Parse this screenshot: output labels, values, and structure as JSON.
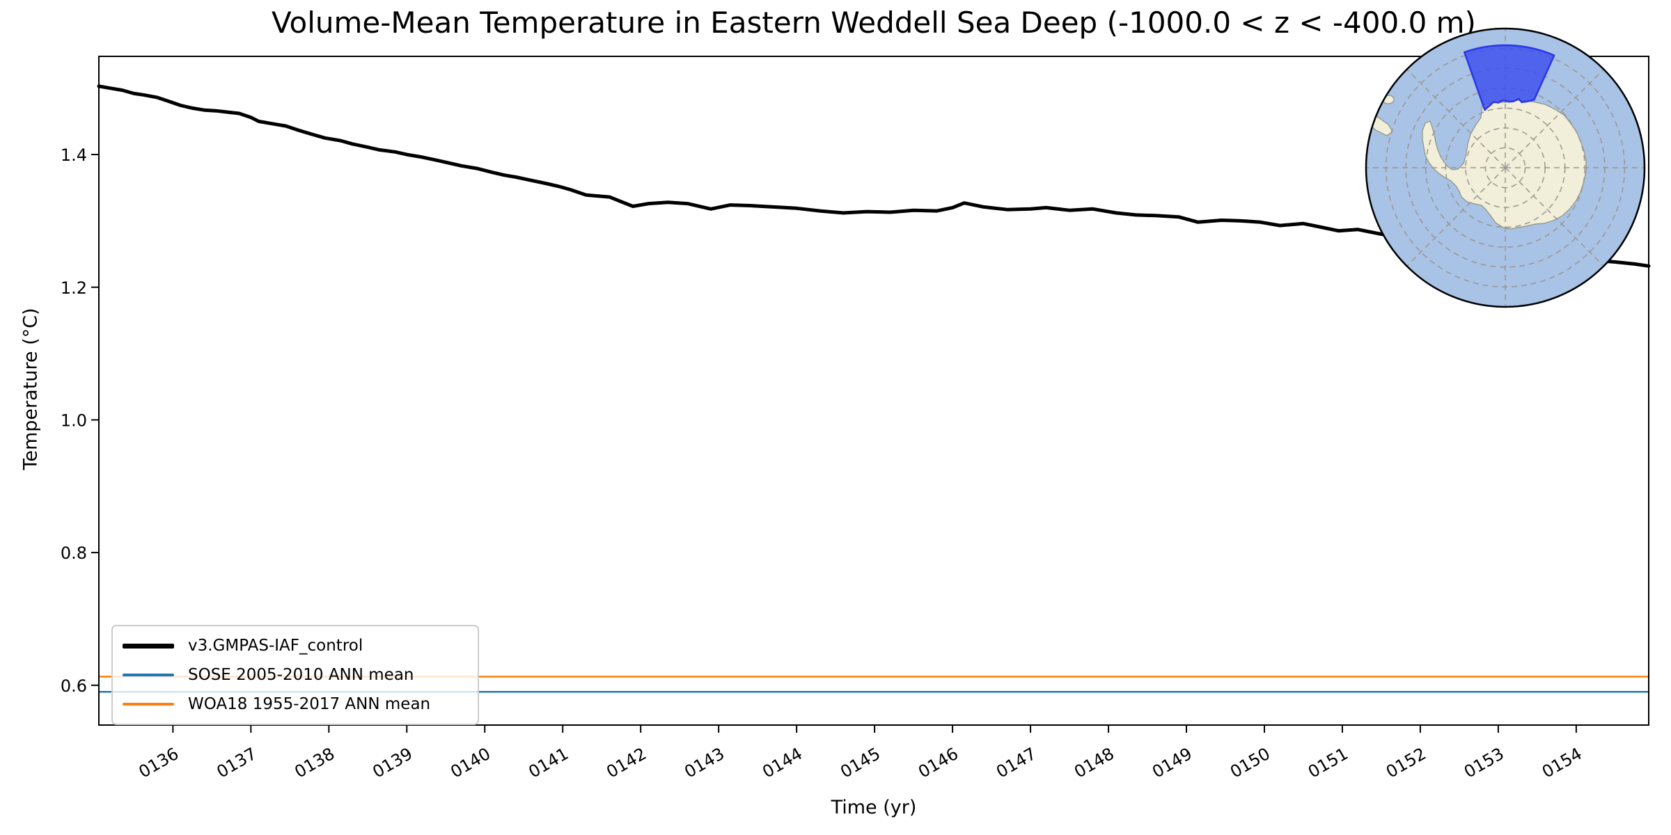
{
  "chart_data": {
    "type": "line",
    "title": "Volume-Mean Temperature in Eastern Weddell Sea Deep (-1000.0 < z < -400.0 m)",
    "xlabel": "Time (yr)",
    "ylabel": "Temperature (°C)",
    "xlim": [
      135.05,
      154.93
    ],
    "ylim": [
      0.54,
      1.548
    ],
    "grid": false,
    "legend_position": "lower left",
    "xticks": {
      "values": [
        136,
        137,
        138,
        139,
        140,
        141,
        142,
        143,
        144,
        145,
        146,
        147,
        148,
        149,
        150,
        151,
        152,
        153,
        154
      ],
      "labels": [
        "0136",
        "0137",
        "0138",
        "0139",
        "0140",
        "0141",
        "0142",
        "0143",
        "0144",
        "0145",
        "0146",
        "0147",
        "0148",
        "0149",
        "0150",
        "0151",
        "0152",
        "0153",
        "0154"
      ],
      "rotation_deg": -30
    },
    "yticks": {
      "values": [
        0.6,
        0.8,
        1.0,
        1.2,
        1.4
      ],
      "labels": [
        "0.6",
        "0.8",
        "1.0",
        "1.2",
        "1.4"
      ]
    },
    "series": [
      {
        "name": "v3.GMPAS-IAF_control",
        "type": "line",
        "color": "#000000",
        "linewidth": 5,
        "points": [
          [
            135.05,
            1.503
          ],
          [
            135.2,
            1.5
          ],
          [
            135.35,
            1.497
          ],
          [
            135.5,
            1.492
          ],
          [
            135.62,
            1.49
          ],
          [
            135.8,
            1.486
          ],
          [
            135.95,
            1.48
          ],
          [
            136.1,
            1.474
          ],
          [
            136.25,
            1.47
          ],
          [
            136.4,
            1.467
          ],
          [
            136.55,
            1.466
          ],
          [
            136.7,
            1.464
          ],
          [
            136.85,
            1.462
          ],
          [
            137.0,
            1.456
          ],
          [
            137.1,
            1.45
          ],
          [
            137.25,
            1.447
          ],
          [
            137.45,
            1.443
          ],
          [
            137.6,
            1.437
          ],
          [
            137.8,
            1.43
          ],
          [
            137.95,
            1.425
          ],
          [
            138.15,
            1.421
          ],
          [
            138.3,
            1.416
          ],
          [
            138.5,
            1.411
          ],
          [
            138.65,
            1.407
          ],
          [
            138.85,
            1.404
          ],
          [
            139.0,
            1.4
          ],
          [
            139.2,
            1.396
          ],
          [
            139.4,
            1.391
          ],
          [
            139.55,
            1.387
          ],
          [
            139.7,
            1.383
          ],
          [
            139.9,
            1.379
          ],
          [
            140.1,
            1.373
          ],
          [
            140.25,
            1.369
          ],
          [
            140.4,
            1.366
          ],
          [
            140.6,
            1.361
          ],
          [
            140.8,
            1.356
          ],
          [
            140.95,
            1.352
          ],
          [
            141.1,
            1.347
          ],
          [
            141.3,
            1.339
          ],
          [
            141.6,
            1.336
          ],
          [
            141.9,
            1.322
          ],
          [
            142.1,
            1.326
          ],
          [
            142.35,
            1.328
          ],
          [
            142.6,
            1.326
          ],
          [
            142.9,
            1.318
          ],
          [
            143.15,
            1.324
          ],
          [
            143.4,
            1.323
          ],
          [
            143.7,
            1.321
          ],
          [
            144.0,
            1.319
          ],
          [
            144.3,
            1.315
          ],
          [
            144.6,
            1.312
          ],
          [
            144.9,
            1.314
          ],
          [
            145.2,
            1.313
          ],
          [
            145.5,
            1.316
          ],
          [
            145.8,
            1.315
          ],
          [
            146.0,
            1.32
          ],
          [
            146.15,
            1.327
          ],
          [
            146.4,
            1.321
          ],
          [
            146.7,
            1.317
          ],
          [
            147.0,
            1.318
          ],
          [
            147.2,
            1.32
          ],
          [
            147.5,
            1.316
          ],
          [
            147.8,
            1.318
          ],
          [
            148.1,
            1.312
          ],
          [
            148.35,
            1.309
          ],
          [
            148.6,
            1.308
          ],
          [
            148.9,
            1.306
          ],
          [
            149.15,
            1.298
          ],
          [
            149.45,
            1.301
          ],
          [
            149.7,
            1.3
          ],
          [
            149.95,
            1.298
          ],
          [
            150.2,
            1.293
          ],
          [
            150.5,
            1.296
          ],
          [
            150.75,
            1.29
          ],
          [
            150.95,
            1.285
          ],
          [
            151.2,
            1.287
          ],
          [
            151.5,
            1.28
          ],
          [
            151.8,
            1.275
          ],
          [
            152.1,
            1.27
          ],
          [
            152.4,
            1.266
          ],
          [
            152.7,
            1.262
          ],
          [
            153.0,
            1.258
          ],
          [
            153.3,
            1.253
          ],
          [
            153.6,
            1.25
          ],
          [
            153.9,
            1.246
          ],
          [
            154.2,
            1.241
          ],
          [
            154.5,
            1.238
          ],
          [
            154.75,
            1.235
          ],
          [
            154.93,
            1.232
          ]
        ]
      },
      {
        "name": "SOSE 2005-2010 ANN mean",
        "type": "hline",
        "color": "#1f77b4",
        "linewidth": 2.5,
        "value": 0.59
      },
      {
        "name": "WOA18 1955-2017 ANN mean",
        "type": "hline",
        "color": "#ff7f0e",
        "linewidth": 2.5,
        "value": 0.613
      }
    ]
  },
  "inset_map": {
    "description": "south-polar-stereographic-antarctica-inset",
    "ocean_color": "#a8c3e6",
    "land_color": "#f1eeda",
    "land_outline_color": "#90907f",
    "graticule_color": "#9a958c",
    "region_fill_color": "#3a4bef",
    "region_border_color": "#2936e8",
    "outline_color": "#000000"
  }
}
